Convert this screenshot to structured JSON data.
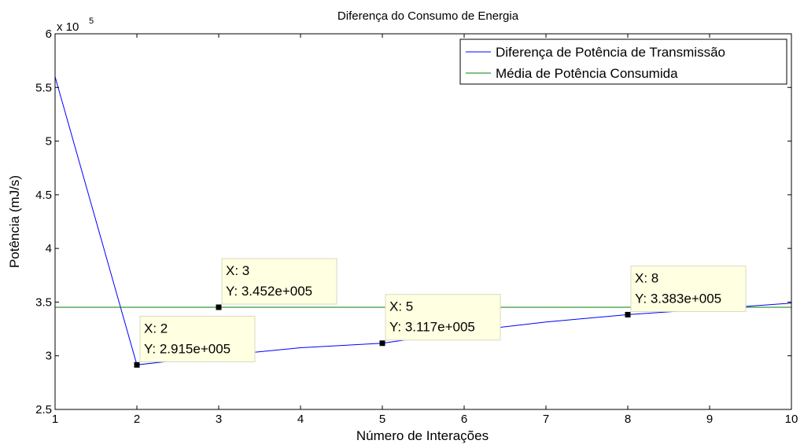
{
  "chart_data": {
    "type": "line",
    "title": "Diferença do Consumo de Energia",
    "xlabel": "Número de Interações",
    "ylabel": "Potência (mJ/s)",
    "exponent_label": "x 10",
    "exponent_power": "5",
    "xlim": [
      1,
      10
    ],
    "ylim": [
      250000,
      600000
    ],
    "x_ticks": [
      1,
      2,
      3,
      4,
      5,
      6,
      7,
      8,
      9,
      10
    ],
    "x_tick_labels": [
      "1",
      "2",
      "3",
      "4",
      "5",
      "6",
      "7",
      "8",
      "9",
      "10"
    ],
    "y_ticks": [
      250000,
      300000,
      350000,
      400000,
      450000,
      500000,
      550000,
      600000
    ],
    "y_tick_labels": [
      "2.5",
      "3",
      "3.5",
      "4",
      "4.5",
      "5",
      "5.5",
      "6"
    ],
    "legend_position": "top-right",
    "series": [
      {
        "name": "Diferença de Potência de Transmissão",
        "color": "#0000ff",
        "x": [
          1,
          2,
          3,
          4,
          5,
          6,
          7,
          8,
          9,
          10
        ],
        "y": [
          560000,
          291500,
          300000,
          307500,
          311700,
          322500,
          331500,
          338300,
          343500,
          349000
        ]
      },
      {
        "name": "Média de Potência Consumida",
        "color": "#008000",
        "x": [
          1,
          10
        ],
        "y": [
          345200,
          345200
        ]
      }
    ],
    "datatips": [
      {
        "x": 2,
        "y": 291500,
        "x_text": "X: 2",
        "y_text": "Y: 2.915e+005"
      },
      {
        "x": 3,
        "y": 345200,
        "x_text": "X: 3",
        "y_text": "Y: 3.452e+005"
      },
      {
        "x": 5,
        "y": 311700,
        "x_text": "X: 5",
        "y_text": "Y: 3.117e+005"
      },
      {
        "x": 8,
        "y": 338300,
        "x_text": "X: 8",
        "y_text": "Y: 3.383e+005"
      }
    ]
  }
}
